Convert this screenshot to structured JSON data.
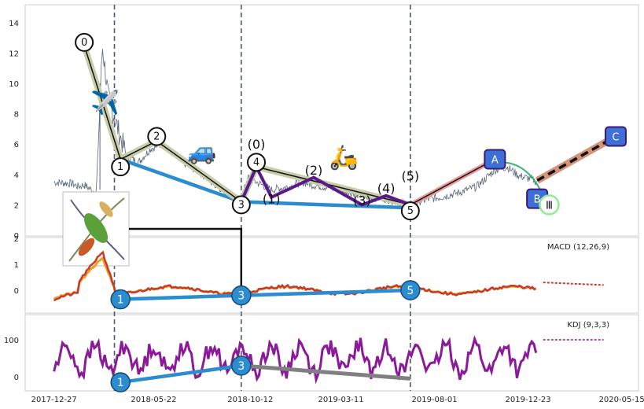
{
  "chart_data": [
    {
      "panel": "price",
      "type": "line",
      "ylim": [
        0,
        15
      ],
      "yticks": [
        "0",
        "2",
        "4",
        "6",
        "8",
        "10",
        "12",
        "14"
      ],
      "xticks": [
        "2017-12-27",
        "2018-05-22",
        "2018-10-12",
        "2019-03-11",
        "2019-08-01",
        "2019-12-23",
        "2020-05-15"
      ],
      "xlim": [
        0,
        100
      ],
      "vlines_x": [
        14,
        35,
        63
      ],
      "price_anchors": [
        [
          4,
          3.5
        ],
        [
          7,
          3.4
        ],
        [
          8,
          3.2
        ],
        [
          9,
          3.3
        ],
        [
          11,
          2.8
        ],
        [
          12,
          12.5
        ],
        [
          13,
          9
        ],
        [
          16,
          5.2
        ],
        [
          18,
          4.8
        ],
        [
          20,
          5.7
        ],
        [
          22,
          6.0
        ],
        [
          24,
          5.3
        ],
        [
          26,
          4.6
        ],
        [
          28,
          4.2
        ],
        [
          30,
          3.5
        ],
        [
          32,
          3.0
        ],
        [
          34,
          2.5
        ],
        [
          35,
          2.2
        ],
        [
          36,
          3.8
        ],
        [
          38,
          3.4
        ],
        [
          40,
          3.0
        ],
        [
          43,
          3.2
        ],
        [
          45,
          3.5
        ],
        [
          47,
          3.3
        ],
        [
          50,
          3.1
        ],
        [
          53,
          2.8
        ],
        [
          56,
          2.5
        ],
        [
          59,
          2.4
        ],
        [
          62,
          2.1
        ],
        [
          63,
          2.0
        ],
        [
          65,
          2.3
        ],
        [
          68,
          2.5
        ],
        [
          71,
          2.8
        ],
        [
          74,
          3.2
        ],
        [
          77,
          4.3
        ],
        [
          79,
          4.5
        ],
        [
          81,
          3.9
        ],
        [
          83,
          3.7
        ],
        [
          84,
          3.5
        ]
      ],
      "main_waves": [
        {
          "label": "0",
          "x": 9,
          "y": 12.7
        },
        {
          "label": "1",
          "x": 15,
          "y": 4.5
        },
        {
          "label": "2",
          "x": 21,
          "y": 6.5
        },
        {
          "label": "3",
          "x": 35,
          "y": 2.0
        },
        {
          "label": "4",
          "x": 37.5,
          "y": 4.8
        },
        {
          "label": "5",
          "x": 63,
          "y": 1.6
        }
      ],
      "sub_waves": [
        {
          "label": "(0)",
          "x": 37.5,
          "y": 5.7
        },
        {
          "label": "(1)",
          "x": 40,
          "y": 2.1
        },
        {
          "label": "(2)",
          "x": 47,
          "y": 4.0
        },
        {
          "label": "(3)",
          "x": 55,
          "y": 2.0
        },
        {
          "label": "(4)",
          "x": 59,
          "y": 2.8
        },
        {
          "label": "(5)",
          "x": 63,
          "y": 3.6
        }
      ],
      "impulse_path": [
        [
          9,
          12.5
        ],
        [
          15,
          5.0
        ],
        [
          21,
          6.2
        ],
        [
          35,
          2.2
        ],
        [
          37.5,
          4.5
        ],
        [
          63,
          2.0
        ]
      ],
      "trend_line": [
        [
          15,
          5.0
        ],
        [
          35,
          2.2
        ],
        [
          63,
          1.8
        ]
      ],
      "correction_boxes": [
        {
          "label": "A",
          "x": 77,
          "y": 5.0
        },
        {
          "label": "B",
          "x": 84,
          "y": 2.4
        },
        {
          "label": "C",
          "x": 97,
          "y": 6.5
        }
      ],
      "roman_label": {
        "label": "Ⅲ",
        "x": 86,
        "y": 2.0
      },
      "emoji_icons": [
        {
          "name": "plane",
          "glyph": "✈️",
          "x": 12.5,
          "y": 8.2
        },
        {
          "name": "car",
          "glyph": "🚙",
          "x": 28.5,
          "y": 5.0
        },
        {
          "name": "scooter",
          "glyph": "🛵",
          "x": 52,
          "y": 4.6
        }
      ]
    },
    {
      "panel": "macd",
      "type": "line",
      "title": "MACD (12,26,9)",
      "ylim": [
        -0.7,
        2.2
      ],
      "yticks": [
        "-0",
        "0",
        "1",
        "2"
      ],
      "blue_points": [
        {
          "label": "1",
          "x": 15,
          "y": -0.35
        },
        {
          "label": "3",
          "x": 35,
          "y": -0.2
        },
        {
          "label": "5",
          "x": 63,
          "y": 0
        }
      ]
    },
    {
      "panel": "kdj",
      "type": "line",
      "title": "KDJ (9,3,3)",
      "ylim": [
        -40,
        170
      ],
      "yticks": [
        "0",
        "100"
      ],
      "blue_points": [
        {
          "label": "1",
          "x": 15,
          "y": -15
        },
        {
          "label": "3",
          "x": 35,
          "y": 30
        }
      ],
      "grey_line": [
        [
          35,
          30
        ],
        [
          63,
          -5
        ]
      ]
    }
  ]
}
